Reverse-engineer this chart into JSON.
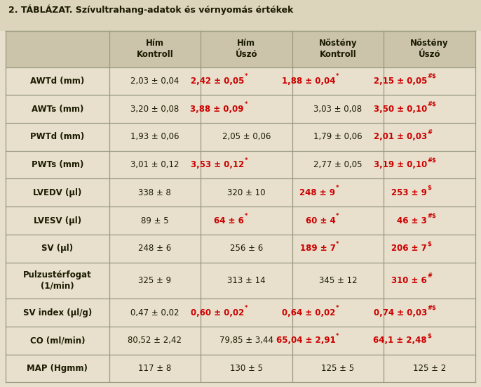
{
  "title": "2. TÁBLÁZAT. Szívultrahang-adatok és vérnyomás értékek",
  "col_headers": [
    "Hím\nKontroll",
    "Hím\nÚszó",
    "Nőstény\nKontroll",
    "Nőstény\nÚszó"
  ],
  "row_labels": [
    "AWTd (mm)",
    "AWTs (mm)",
    "PWTd (mm)",
    "PWTs (mm)",
    "LVEDV (µl)",
    "LVESV (µl)",
    "SV (µl)",
    "Pulzustérfogat\n(1/min)",
    "SV index (µl/g)",
    "CO (ml/min)",
    "MAP (Hgmm)"
  ],
  "cells": [
    [
      {
        "text": "2,03 ± 0,04",
        "red": false,
        "sup": ""
      },
      {
        "text": "2,42 ± 0,05",
        "red": true,
        "sup": "*"
      },
      {
        "text": "1,88 ± 0,04",
        "red": true,
        "sup": "*"
      },
      {
        "text": "2,15 ± 0,05",
        "red": true,
        "sup": "#$"
      }
    ],
    [
      {
        "text": "3,20 ± 0,08",
        "red": false,
        "sup": ""
      },
      {
        "text": "3,88 ± 0,09",
        "red": true,
        "sup": "*"
      },
      {
        "text": "3,03 ± 0,08",
        "red": false,
        "sup": ""
      },
      {
        "text": "3,50 ± 0,10",
        "red": true,
        "sup": "#$"
      }
    ],
    [
      {
        "text": "1,93 ± 0,06",
        "red": false,
        "sup": ""
      },
      {
        "text": "2,05 ± 0,06",
        "red": false,
        "sup": ""
      },
      {
        "text": "1,79 ± 0,06",
        "red": false,
        "sup": ""
      },
      {
        "text": "2,01 ± 0,03",
        "red": true,
        "sup": "#"
      }
    ],
    [
      {
        "text": "3,01 ± 0,12",
        "red": false,
        "sup": ""
      },
      {
        "text": "3,53 ± 0,12",
        "red": true,
        "sup": "*"
      },
      {
        "text": "2,77 ± 0,05",
        "red": false,
        "sup": ""
      },
      {
        "text": "3,19 ± 0,10",
        "red": true,
        "sup": "#$"
      }
    ],
    [
      {
        "text": "338 ± 8",
        "red": false,
        "sup": ""
      },
      {
        "text": "320 ± 10",
        "red": false,
        "sup": ""
      },
      {
        "text": "248 ± 9",
        "red": true,
        "sup": "*"
      },
      {
        "text": "253 ± 9",
        "red": true,
        "sup": "$"
      }
    ],
    [
      {
        "text": "89 ± 5",
        "red": false,
        "sup": ""
      },
      {
        "text": "64 ± 6",
        "red": true,
        "sup": "*"
      },
      {
        "text": "60 ± 4",
        "red": true,
        "sup": "*"
      },
      {
        "text": "46 ± 3",
        "red": true,
        "sup": "#$"
      }
    ],
    [
      {
        "text": "248 ± 6",
        "red": false,
        "sup": ""
      },
      {
        "text": "256 ± 6",
        "red": false,
        "sup": ""
      },
      {
        "text": "189 ± 7",
        "red": true,
        "sup": "*"
      },
      {
        "text": "206 ± 7",
        "red": true,
        "sup": "$"
      }
    ],
    [
      {
        "text": "325 ± 9",
        "red": false,
        "sup": ""
      },
      {
        "text": "313 ± 14",
        "red": false,
        "sup": ""
      },
      {
        "text": "345 ± 12",
        "red": false,
        "sup": ""
      },
      {
        "text": "310 ± 6",
        "red": true,
        "sup": "#"
      }
    ],
    [
      {
        "text": "0,47 ± 0,02",
        "red": false,
        "sup": ""
      },
      {
        "text": "0,60 ± 0,02",
        "red": true,
        "sup": "*"
      },
      {
        "text": "0,64 ± 0,02",
        "red": true,
        "sup": "*"
      },
      {
        "text": "0,74 ± 0,03",
        "red": true,
        "sup": "#$"
      }
    ],
    [
      {
        "text": "80,52 ± 2,42",
        "red": false,
        "sup": ""
      },
      {
        "text": "79,85 ± 3,44",
        "red": false,
        "sup": ""
      },
      {
        "text": "65,04 ± 2,91",
        "red": true,
        "sup": "*"
      },
      {
        "text": "64,1 ± 2,48",
        "red": true,
        "sup": "$"
      }
    ],
    [
      {
        "text": "117 ± 8",
        "red": false,
        "sup": ""
      },
      {
        "text": "130 ± 5",
        "red": false,
        "sup": ""
      },
      {
        "text": "125 ± 5",
        "red": false,
        "sup": ""
      },
      {
        "text": "125 ± 2",
        "red": false,
        "sup": ""
      }
    ]
  ],
  "bg_color": "#e8e0cc",
  "header_bg": "#ccc4aa",
  "title_bg": "#ddd5bb",
  "border_color": "#999980",
  "text_color_normal": "#1a1a00",
  "text_color_red": "#cc0000",
  "title_fontsize": 9.0,
  "header_fontsize": 8.5,
  "cell_fontsize": 8.5,
  "label_fontsize": 8.5,
  "sup_fontsize": 6.0
}
